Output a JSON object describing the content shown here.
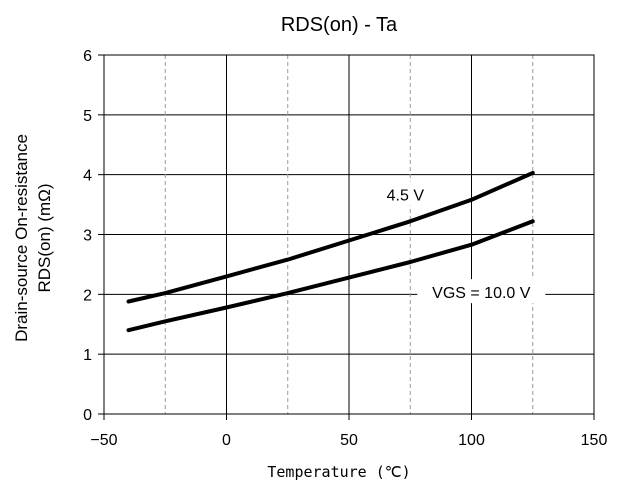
{
  "chart_data": {
    "type": "line",
    "title": "RDS(on) - Ta",
    "xlabel": "Temperature (℃)",
    "ylabel_line1": "Drain-source On-resistance",
    "ylabel_line2": "RDS(on) (mΩ)",
    "xlim": [
      -50,
      150
    ],
    "ylim": [
      0,
      6
    ],
    "xticks": [
      -50,
      0,
      50,
      100,
      150
    ],
    "xtick_labels": [
      "−50",
      "0",
      "50",
      "100",
      "150"
    ],
    "yticks": [
      0,
      1,
      2,
      3,
      4,
      5,
      6
    ],
    "ytick_labels": [
      "0",
      "1",
      "2",
      "3",
      "4",
      "5",
      "6"
    ],
    "minor_x_dashed": [
      -25,
      25,
      75,
      125
    ],
    "grid": true,
    "series": [
      {
        "name": "4.5 V",
        "x": [
          -40,
          -25,
          0,
          25,
          50,
          75,
          100,
          125
        ],
        "y": [
          1.88,
          2.02,
          2.3,
          2.58,
          2.9,
          3.22,
          3.58,
          4.03
        ]
      },
      {
        "name": "VGS = 10.0 V",
        "x": [
          -40,
          -25,
          0,
          25,
          50,
          75,
          100,
          125
        ],
        "y": [
          1.4,
          1.55,
          1.78,
          2.02,
          2.28,
          2.54,
          2.83,
          3.22
        ]
      }
    ],
    "annotations": [
      {
        "text": "4.5 V",
        "x": 73,
        "y": 3.65
      },
      {
        "text": "VGS = 10.0 V",
        "x": 104,
        "y": 2.02
      }
    ]
  }
}
